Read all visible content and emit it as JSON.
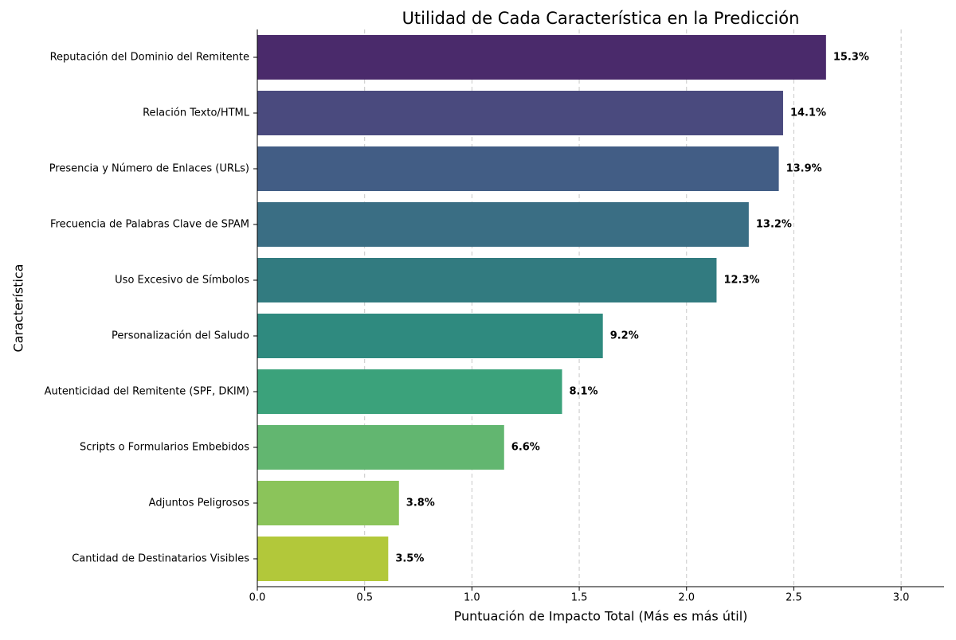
{
  "chart_data": {
    "type": "barh",
    "title": "Utilidad de Cada Característica en la Predicción",
    "x_label": "Puntuación de Impacto Total (Más es más útil)",
    "y_label": "Característica",
    "categories": [
      "Reputación del Dominio del Remitente",
      "Relación Texto/HTML",
      "Presencia y Número de Enlaces (URLs)",
      "Frecuencia de Palabras Clave de SPAM",
      "Uso Excesivo de Símbolos",
      "Personalización del Saludo",
      "Autenticidad del Remitente (SPF, DKIM)",
      "Scripts o Formularios Embebidos",
      "Adjuntos Peligrosos",
      "Cantidad de Destinatarios Visibles"
    ],
    "values": [
      2.65,
      2.45,
      2.43,
      2.29,
      2.14,
      1.61,
      1.42,
      1.15,
      0.66,
      0.61
    ],
    "annotations": [
      "15.3%",
      "14.1%",
      "13.9%",
      "13.2%",
      "12.3%",
      "9.2%",
      "8.1%",
      "6.6%",
      "3.8%",
      "3.5%"
    ],
    "colors": [
      "#4a2a6b",
      "#4a4a7e",
      "#425d85",
      "#3a6e84",
      "#327b80",
      "#2f8a7f",
      "#3ba27b",
      "#62b670",
      "#8bc45a",
      "#b2c83a"
    ],
    "xlim": [
      0,
      3.2
    ],
    "xticks": [
      {
        "value": 0,
        "label": "0.0"
      },
      0.5,
      {
        "value": 1,
        "label": "1.0"
      },
      1.5,
      {
        "value": 2,
        "label": "2.0"
      },
      2.5,
      {
        "value": 3,
        "label": "3.0"
      }
    ],
    "grid": true
  }
}
